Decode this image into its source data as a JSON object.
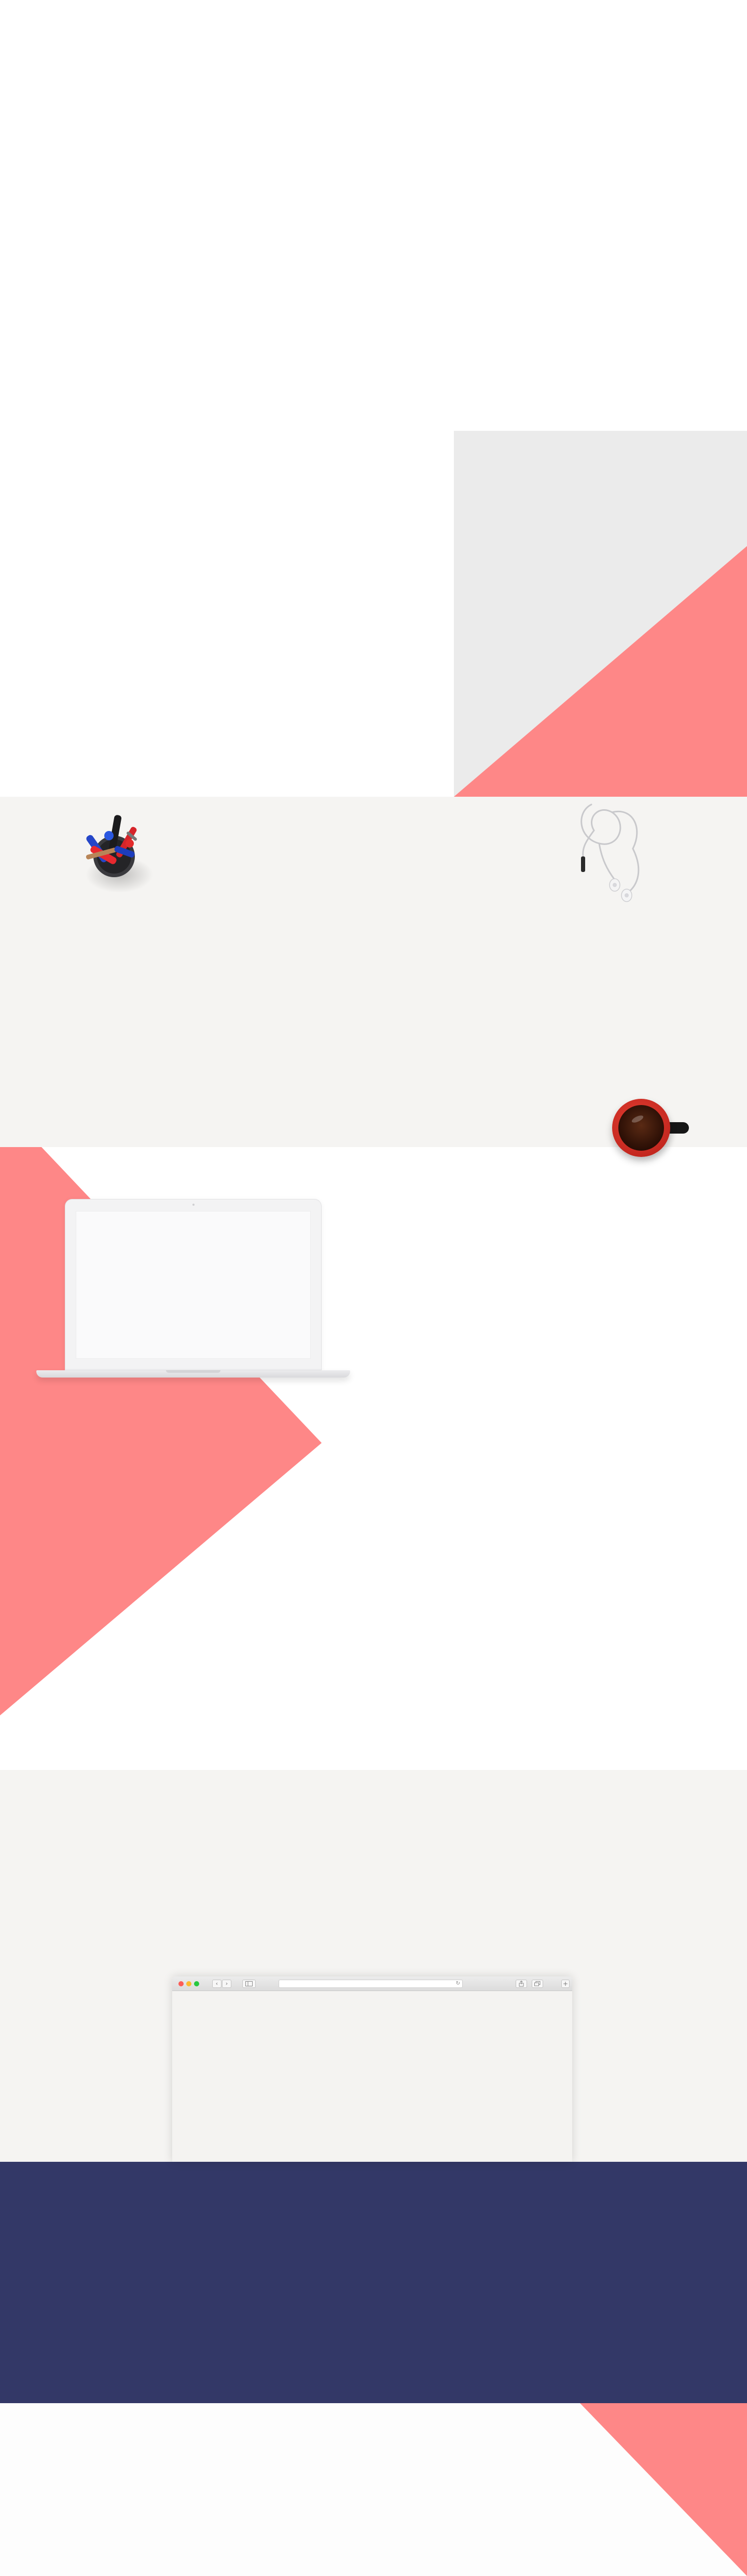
{
  "colors": {
    "background": "#ffffff",
    "light_gray": "#f5f4f2",
    "gray_block": "#ebebeb",
    "coral": "#fe8787",
    "navy": "#333867"
  },
  "browser": {
    "nav_back_icon": "chevron-left-icon",
    "nav_forward_icon": "chevron-right-icon",
    "sidebar_icon": "sidebar-icon",
    "reload_icon": "reload-icon",
    "share_icon": "share-icon",
    "tabs_icon": "tabs-icon",
    "new_tab_icon": "plus-icon",
    "back_glyph": "‹",
    "forward_glyph": "›",
    "reload_glyph": "↻",
    "new_tab_glyph": "+",
    "address_value": ""
  },
  "objects": {
    "desk_items": [
      "pen-cup-icon",
      "earphones-icon",
      "coffee-mug-icon"
    ],
    "devices": [
      "laptop-icon",
      "browser-window"
    ]
  }
}
